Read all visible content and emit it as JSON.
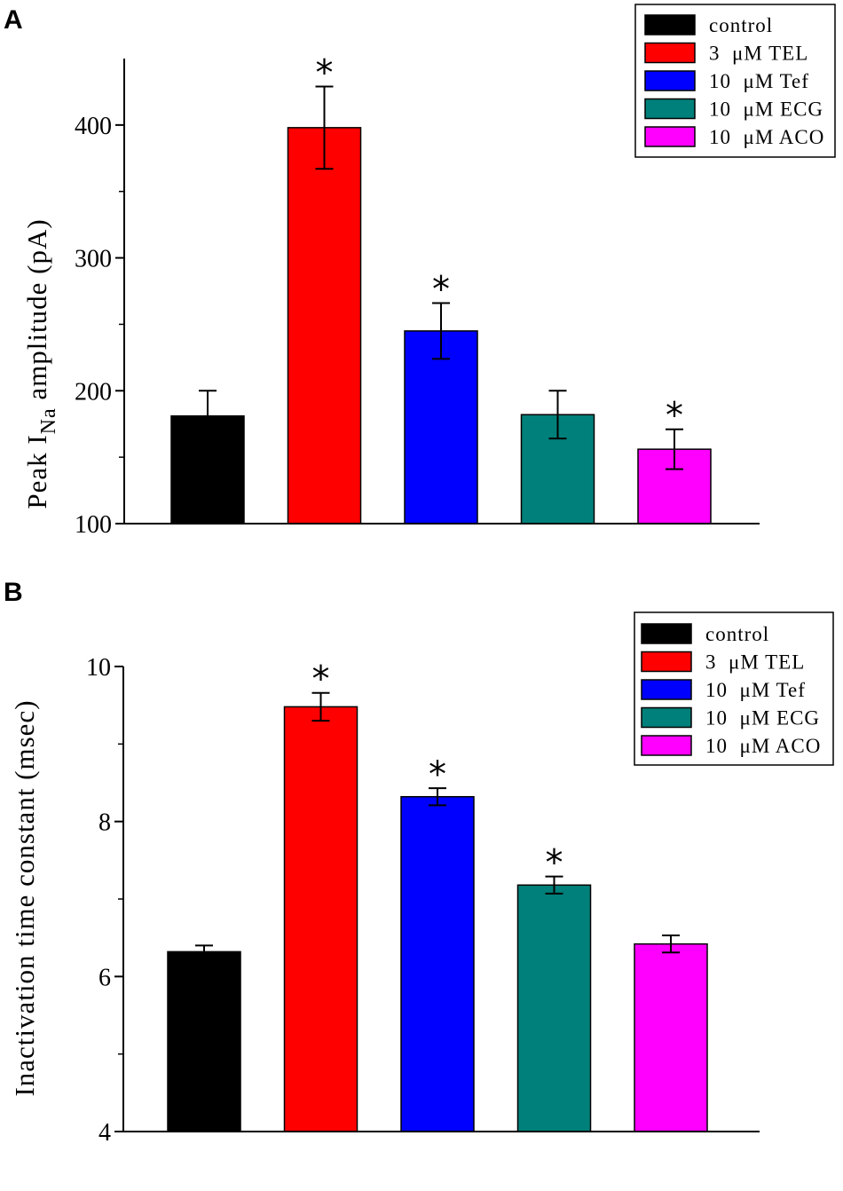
{
  "chart_data": [
    {
      "panel_label": "A",
      "type": "bar",
      "ylabel_prefix": "Peak I",
      "ylabel_sub": "Na",
      "ylabel_suffix": " amplitude (pA)",
      "xlabel": "",
      "ylim": [
        100,
        450
      ],
      "yticks": [
        100,
        200,
        300,
        400
      ],
      "tick_labels": [
        "100",
        "200",
        "300",
        "400"
      ],
      "categories": [
        "control",
        "3 μM TEL",
        "10 μM Tef",
        "10 μM ECG",
        "10 μM ACO"
      ],
      "values": [
        181,
        398,
        245,
        182,
        156
      ],
      "errors": [
        19,
        31,
        21,
        18,
        15
      ],
      "significant": [
        false,
        true,
        true,
        false,
        true
      ],
      "colors": [
        "#000000",
        "#ff0000",
        "#0000ff",
        "#00807a",
        "#ff00ff"
      ],
      "legend": [
        "control",
        "3  μM TEL",
        "10  μM Tef",
        "10  μM ECG",
        "10  μM ACO"
      ],
      "legend_position": "top-right",
      "star_symbol": "*"
    },
    {
      "panel_label": "B",
      "type": "bar",
      "ylabel": "Inactivation time constant (msec)",
      "xlabel": "",
      "ylim": [
        4,
        10
      ],
      "yticks": [
        4,
        6,
        8,
        10
      ],
      "tick_labels": [
        "4",
        "6",
        "8",
        "10"
      ],
      "categories": [
        "control",
        "3 μM TEL",
        "10 μM Tef",
        "10 μM ECG",
        "10 μM ACO"
      ],
      "values": [
        6.32,
        9.48,
        8.32,
        7.18,
        6.42
      ],
      "errors": [
        0.08,
        0.18,
        0.11,
        0.11,
        0.11
      ],
      "significant": [
        false,
        true,
        true,
        true,
        false
      ],
      "colors": [
        "#000000",
        "#ff0000",
        "#0000ff",
        "#00807a",
        "#ff00ff"
      ],
      "legend": [
        "control",
        "3  μM TEL",
        "10  μM Tef",
        "10  μM ECG",
        "10  μM ACO"
      ],
      "legend_position": "top-right",
      "star_symbol": "*"
    }
  ]
}
